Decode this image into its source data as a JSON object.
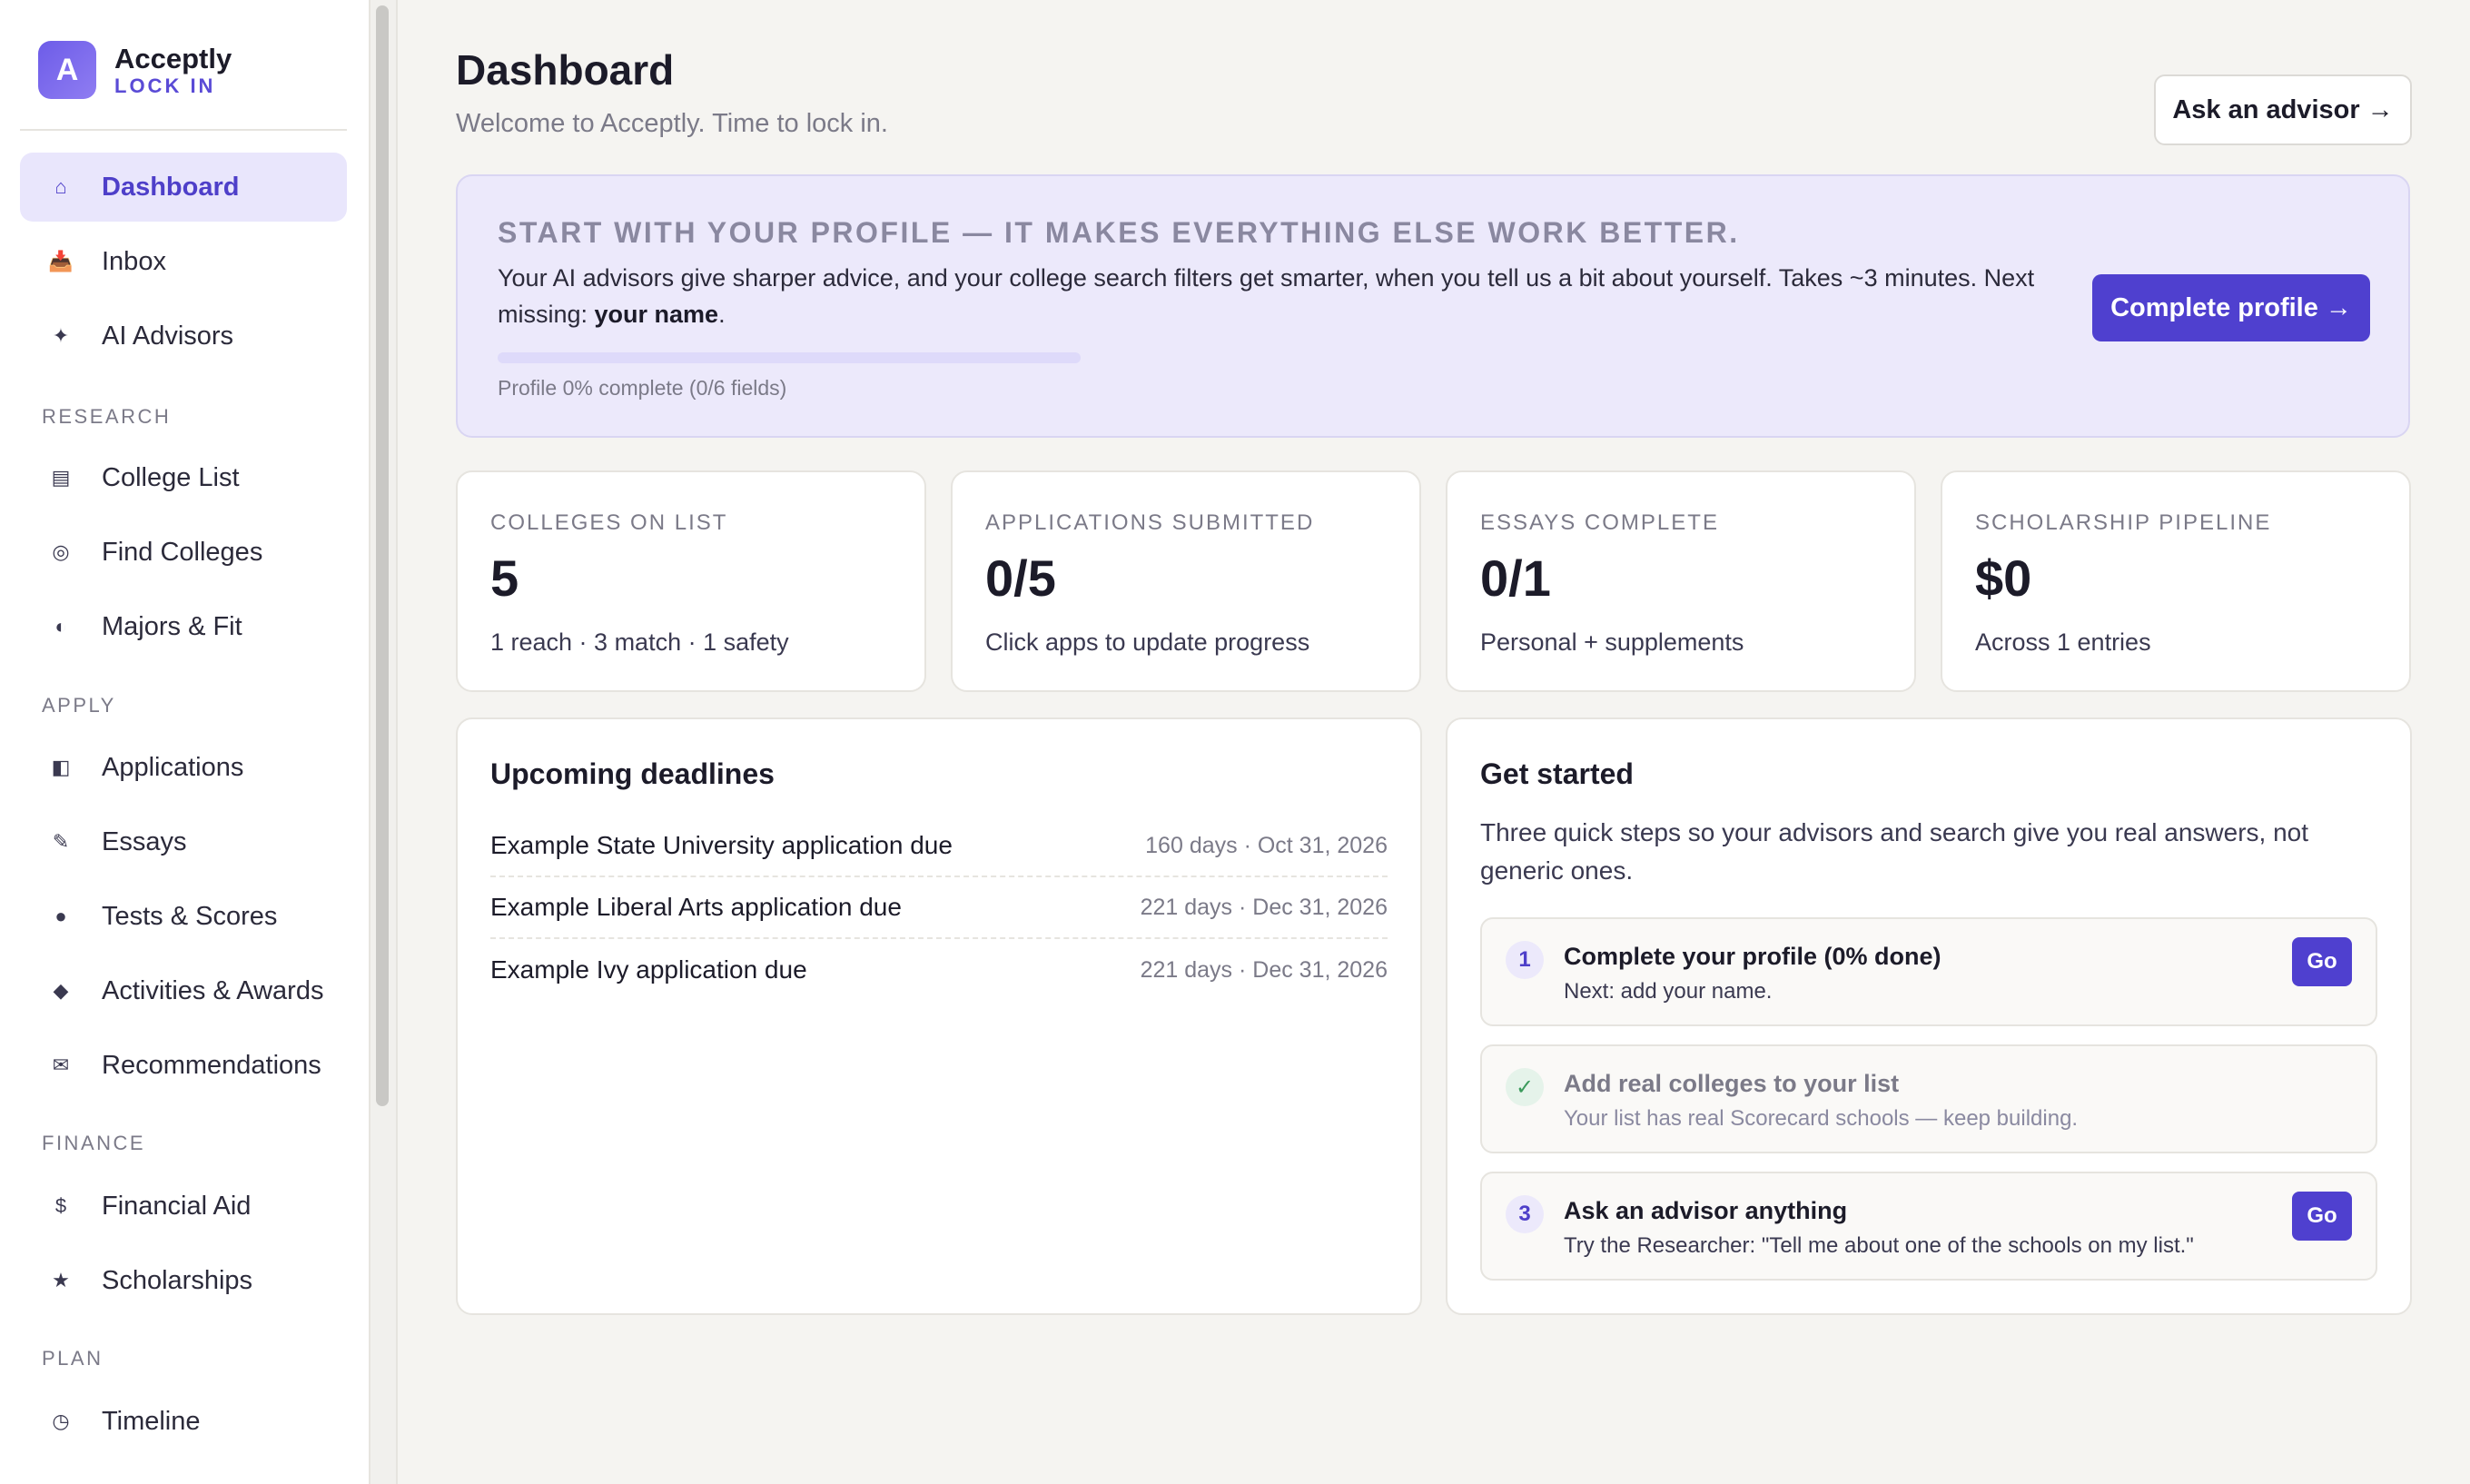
{
  "brand": {
    "logo_letter": "A",
    "name": "Acceptly",
    "tagline": "LOCK IN"
  },
  "sidebar": {
    "items": [
      {
        "label": "Dashboard",
        "icon": "⌂",
        "icon_name": "home-icon",
        "active": true
      },
      {
        "label": "Inbox",
        "icon": "📥",
        "icon_name": "inbox-icon"
      },
      {
        "label": "AI Advisors",
        "icon": "✦",
        "icon_name": "sparkle-icon"
      }
    ],
    "sections": [
      {
        "label": "RESEARCH",
        "items": [
          {
            "label": "College List",
            "icon": "▤",
            "icon_name": "list-icon"
          },
          {
            "label": "Find Colleges",
            "icon": "◎",
            "icon_name": "target-icon"
          },
          {
            "label": "Majors & Fit",
            "icon": "◐",
            "icon_name": "half-circle-icon"
          }
        ]
      },
      {
        "label": "APPLY",
        "items": [
          {
            "label": "Applications",
            "icon": "◧",
            "icon_name": "document-icon"
          },
          {
            "label": "Essays",
            "icon": "✎",
            "icon_name": "pencil-icon"
          },
          {
            "label": "Tests & Scores",
            "icon": "●",
            "icon_name": "dot-icon"
          },
          {
            "label": "Activities & Awards",
            "icon": "◆",
            "icon_name": "diamond-icon"
          },
          {
            "label": "Recommendations",
            "icon": "✉",
            "icon_name": "envelope-icon"
          }
        ]
      },
      {
        "label": "FINANCE",
        "items": [
          {
            "label": "Financial Aid",
            "icon": "$",
            "icon_name": "dollar-icon"
          },
          {
            "label": "Scholarships",
            "icon": "★",
            "icon_name": "star-icon"
          }
        ]
      },
      {
        "label": "PLAN",
        "items": [
          {
            "label": "Timeline",
            "icon": "◷",
            "icon_name": "clock-icon"
          }
        ]
      }
    ]
  },
  "header": {
    "title": "Dashboard",
    "subtitle": "Welcome to Acceptly. Time to lock in.",
    "ask_button": "Ask an advisor →"
  },
  "banner": {
    "title": "START WITH YOUR PROFILE — IT MAKES EVERYTHING ELSE WORK BETTER.",
    "body": "Your AI advisors give sharper advice, and your college search filters get smarter, when you tell us a bit about yourself. Takes ~3 minutes. Next missing: ",
    "body_bold": "your name",
    "body_end": ".",
    "progress_percent": 0,
    "progress_text": "Profile 0% complete (0/6 fields)",
    "button": "Complete profile →"
  },
  "stats": [
    {
      "label": "COLLEGES ON LIST",
      "value": "5",
      "sub": "1 reach · 3 match · 1 safety"
    },
    {
      "label": "APPLICATIONS SUBMITTED",
      "value": "0/5",
      "sub": "Click apps to update progress"
    },
    {
      "label": "ESSAYS COMPLETE",
      "value": "0/1",
      "sub": "Personal + supplements"
    },
    {
      "label": "SCHOLARSHIP PIPELINE",
      "value": "$0",
      "sub": "Across 1 entries"
    }
  ],
  "deadlines": {
    "title": "Upcoming deadlines",
    "items": [
      {
        "name": "Example State University application due",
        "when": "160 days · Oct 31, 2026"
      },
      {
        "name": "Example Liberal Arts application due",
        "when": "221 days · Dec 31, 2026"
      },
      {
        "name": "Example Ivy application due",
        "when": "221 days · Dec 31, 2026"
      }
    ]
  },
  "get_started": {
    "title": "Get started",
    "intro": "Three quick steps so your advisors and search give you real answers, not generic ones.",
    "steps": [
      {
        "num": "1",
        "title": "Complete your profile (0% done)",
        "sub": "Next: add your name.",
        "button": "Go",
        "done": false
      },
      {
        "num": "✓",
        "title": "Add real colleges to your list",
        "sub": "Your list has real Scorecard schools — keep building.",
        "done": true
      },
      {
        "num": "3",
        "title": "Ask an advisor anything",
        "sub": "Try the Researcher: \"Tell me about one of the schools on my list.\"",
        "button": "Go",
        "done": false
      }
    ]
  },
  "colors": {
    "accent": "#4f40cf",
    "accent_light": "#ece9fb",
    "check_green": "#3a9a5b"
  }
}
